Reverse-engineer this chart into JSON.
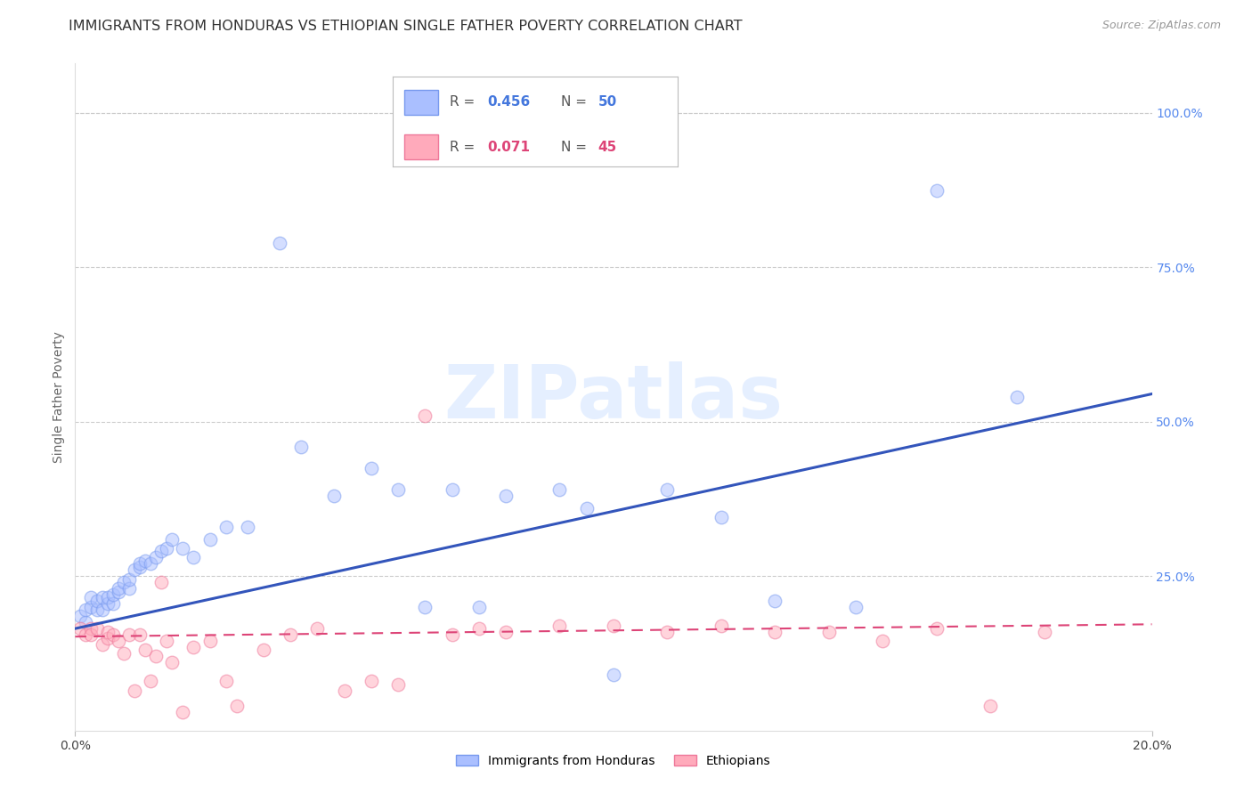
{
  "title": "IMMIGRANTS FROM HONDURAS VS ETHIOPIAN SINGLE FATHER POVERTY CORRELATION CHART",
  "source": "Source: ZipAtlas.com",
  "ylabel": "Single Father Poverty",
  "right_yticks": [
    "100.0%",
    "75.0%",
    "50.0%",
    "25.0%"
  ],
  "right_ytick_vals": [
    1.0,
    0.75,
    0.5,
    0.25
  ],
  "xlim": [
    0.0,
    0.2
  ],
  "ylim": [
    0.0,
    1.08
  ],
  "blue_scatter_x": [
    0.001,
    0.002,
    0.002,
    0.003,
    0.003,
    0.004,
    0.004,
    0.005,
    0.005,
    0.006,
    0.006,
    0.007,
    0.007,
    0.008,
    0.008,
    0.009,
    0.01,
    0.01,
    0.011,
    0.012,
    0.012,
    0.013,
    0.014,
    0.015,
    0.016,
    0.017,
    0.018,
    0.02,
    0.022,
    0.025,
    0.028,
    0.032,
    0.038,
    0.042,
    0.048,
    0.055,
    0.06,
    0.065,
    0.07,
    0.075,
    0.08,
    0.09,
    0.095,
    0.1,
    0.11,
    0.12,
    0.13,
    0.145,
    0.16,
    0.175
  ],
  "blue_scatter_y": [
    0.185,
    0.175,
    0.195,
    0.2,
    0.215,
    0.195,
    0.21,
    0.195,
    0.215,
    0.205,
    0.215,
    0.205,
    0.22,
    0.225,
    0.23,
    0.24,
    0.23,
    0.245,
    0.26,
    0.265,
    0.27,
    0.275,
    0.27,
    0.28,
    0.29,
    0.295,
    0.31,
    0.295,
    0.28,
    0.31,
    0.33,
    0.33,
    0.79,
    0.46,
    0.38,
    0.425,
    0.39,
    0.2,
    0.39,
    0.2,
    0.38,
    0.39,
    0.36,
    0.09,
    0.39,
    0.345,
    0.21,
    0.2,
    0.875,
    0.54
  ],
  "pink_scatter_x": [
    0.001,
    0.002,
    0.003,
    0.003,
    0.004,
    0.005,
    0.006,
    0.006,
    0.007,
    0.008,
    0.009,
    0.01,
    0.011,
    0.012,
    0.013,
    0.014,
    0.015,
    0.016,
    0.017,
    0.018,
    0.02,
    0.022,
    0.025,
    0.028,
    0.03,
    0.035,
    0.04,
    0.045,
    0.05,
    0.055,
    0.06,
    0.065,
    0.07,
    0.075,
    0.08,
    0.09,
    0.1,
    0.11,
    0.12,
    0.13,
    0.14,
    0.15,
    0.16,
    0.17,
    0.18
  ],
  "pink_scatter_y": [
    0.165,
    0.155,
    0.165,
    0.155,
    0.165,
    0.14,
    0.15,
    0.16,
    0.155,
    0.145,
    0.125,
    0.155,
    0.065,
    0.155,
    0.13,
    0.08,
    0.12,
    0.24,
    0.145,
    0.11,
    0.03,
    0.135,
    0.145,
    0.08,
    0.04,
    0.13,
    0.155,
    0.165,
    0.065,
    0.08,
    0.075,
    0.51,
    0.155,
    0.165,
    0.16,
    0.17,
    0.17,
    0.16,
    0.17,
    0.16,
    0.16,
    0.145,
    0.165,
    0.04,
    0.16
  ],
  "blue_line_x": [
    0.0,
    0.2
  ],
  "blue_line_y": [
    0.165,
    0.545
  ],
  "pink_line_x": [
    0.0,
    0.2
  ],
  "pink_line_y": [
    0.152,
    0.172
  ],
  "scatter_size": 110,
  "scatter_alpha": 0.5,
  "scatter_linewidth": 1.0,
  "blue_face": "#AABFFF",
  "blue_edge": "#7799EE",
  "pink_face": "#FFAABB",
  "pink_edge": "#EE7799",
  "line_blue": "#3355BB",
  "line_pink": "#DD4477",
  "background_color": "#FFFFFF",
  "grid_color": "#CCCCCC",
  "right_tick_color": "#5588EE",
  "title_fontsize": 11.5,
  "label_fontsize": 10,
  "tick_fontsize": 10,
  "watermark_text": "ZIPatlas",
  "watermark_color": "#AACCFF",
  "watermark_alpha": 0.3,
  "watermark_fontsize": 60,
  "legend_blue_r": "0.456",
  "legend_blue_n": "50",
  "legend_pink_r": "0.071",
  "legend_pink_n": "45",
  "legend_text_color": "#555555",
  "legend_val_color_blue": "#4477DD",
  "legend_val_color_pink": "#DD4477"
}
